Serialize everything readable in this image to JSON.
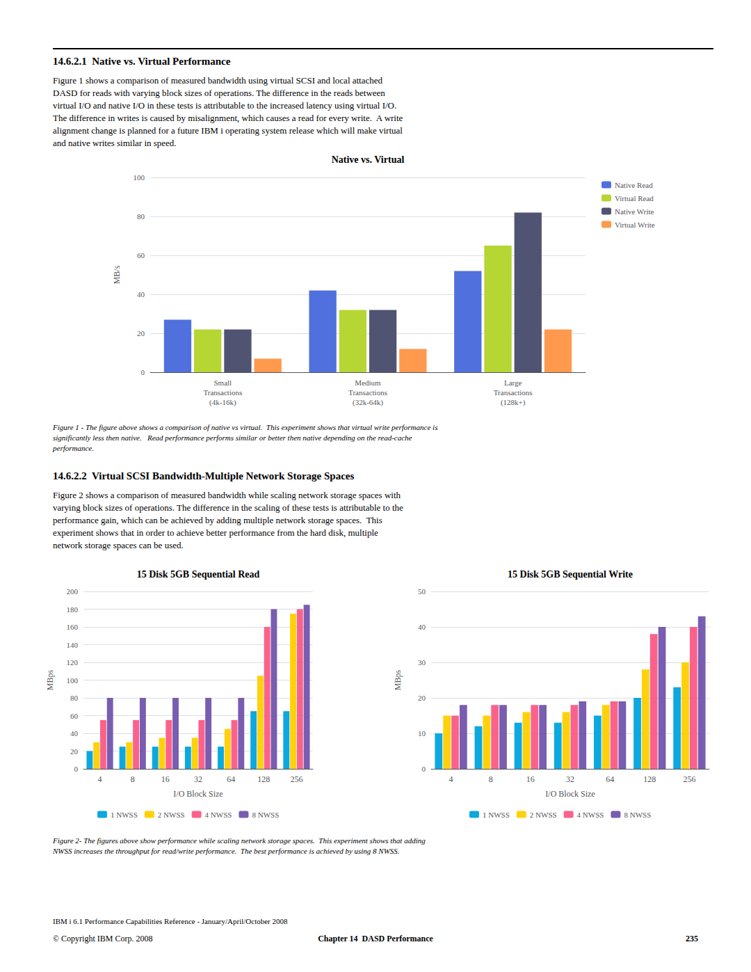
{
  "chart_data": [
    {
      "type": "bar",
      "title": "Native vs. Virtual",
      "ylabel": "MB/s",
      "categories": [
        "Small\nTransactions\n(4k-16k)",
        "Medium\nTransactions\n(32k-64k)",
        "Large\nTransactions\n(128k+)"
      ],
      "series": [
        {
          "name": "Native Read",
          "values": [
            27,
            42,
            52
          ]
        },
        {
          "name": "Virtual Read",
          "values": [
            22,
            32,
            65
          ]
        },
        {
          "name": "Native Write",
          "values": [
            22,
            32,
            82
          ]
        },
        {
          "name": "Virtual Write",
          "values": [
            7,
            12,
            22
          ]
        }
      ],
      "ylim": [
        0,
        100
      ],
      "yticks": [
        0,
        20,
        40,
        60,
        80,
        100
      ],
      "grid": true,
      "legend": "right",
      "annotations": [
        "14.6.2.1  Native vs. Virtual Performance",
        "Figure 1 shows a comparison of measured bandwidth using virtual SCSI and local attached\nDASD for reads with varying block sizes of operations. The difference in the reads between\nvirtual I/O and native I/O in these tests is attributable to the increased latency using virtual I/O.\nThe difference in writes is caused by misalignment, which causes a read for every write.  A write\nalignment change is planned for a future IBM i operating system release which will make virtual\nand native writes similar in speed.",
        "Figure 1 - The figure above shows a comparison of native vs virtual.  This experiment shows that virtual write performance is\nsignificantly less then native.   Read performance performs similar or better then native depending on the read-cache\nperformance."
      ]
    },
    {
      "type": "bar",
      "title": "15 Disk 5GB Sequential Read",
      "ylabel": "MBps",
      "xlabel": "I/O Block Size",
      "categories": [
        "4",
        "8",
        "16",
        "32",
        "64",
        "128",
        "256"
      ],
      "series": [
        {
          "name": "1 NWSS",
          "values": [
            20,
            25,
            25,
            25,
            25,
            65,
            65
          ]
        },
        {
          "name": "2 NWSS",
          "values": [
            30,
            30,
            35,
            35,
            45,
            105,
            175
          ]
        },
        {
          "name": "4 NWSS",
          "values": [
            55,
            55,
            55,
            55,
            55,
            160,
            180
          ]
        },
        {
          "name": "8 NWSS",
          "values": [
            80,
            80,
            80,
            80,
            80,
            180,
            185
          ]
        }
      ],
      "ylim": [
        0,
        200
      ],
      "yticks": [
        0,
        20,
        40,
        60,
        80,
        100,
        120,
        140,
        160,
        180,
        200
      ],
      "grid": true,
      "legend": "bottom",
      "annotations": [
        "14.6.2.2  Virtual SCSI Bandwidth-Multiple Network Storage Spaces",
        "Figure 2 shows a comparison of measured bandwidth while scaling network storage spaces with\nvarying block sizes of operations. The difference in the scaling of these tests is attributable to the\nperformance gain, which can be achieved by adding multiple network storage spaces.  This\nexperiment shows that in order to achieve better performance from the hard disk, multiple\nnetwork storage spaces can be used."
      ]
    },
    {
      "type": "bar",
      "title": "15 Disk 5GB Sequential Write",
      "ylabel": "MBps",
      "xlabel": "I/O Block Size",
      "categories": [
        "4",
        "8",
        "16",
        "32",
        "64",
        "128",
        "256"
      ],
      "series": [
        {
          "name": "1 NWSS",
          "values": [
            10,
            12,
            13,
            13,
            15,
            20,
            23
          ]
        },
        {
          "name": "2 NWSS",
          "values": [
            15,
            15,
            16,
            16,
            18,
            28,
            30
          ]
        },
        {
          "name": "4 NWSS",
          "values": [
            15,
            18,
            18,
            18,
            19,
            38,
            40
          ]
        },
        {
          "name": "8 NWSS",
          "values": [
            18,
            18,
            18,
            19,
            19,
            40,
            43
          ]
        }
      ],
      "ylim": [
        0,
        50
      ],
      "yticks": [
        0,
        10,
        20,
        30,
        40,
        50
      ],
      "grid": true,
      "legend": "bottom",
      "annotations": [
        "Figure 2- The figures above show performance while scaling network storage spaces.  This experiment shows that adding\nNWSS increases the throughput for read/write performance.  The best performance is achieved by using 8 NWSS.",
        "IBM i 6.1 Performance Capabilities Reference - January/April/October 2008",
        "© Copyright IBM Corp. 2008",
        "Chapter 14  DASD Performance",
        "235"
      ]
    }
  ]
}
